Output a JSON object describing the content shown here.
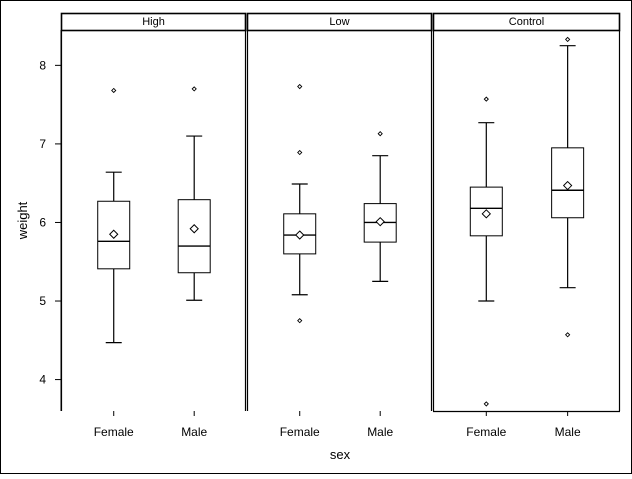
{
  "chart_data": {
    "type": "boxplot",
    "xlabel": "sex",
    "ylabel": "weight",
    "ylim": [
      3.6,
      8.45
    ],
    "yticks": [
      4,
      5,
      6,
      7,
      8
    ],
    "grid": false,
    "categories": [
      "Female",
      "Male"
    ],
    "panels": [
      {
        "name": "High",
        "boxes": [
          {
            "category": "Female",
            "whisker_low": 4.47,
            "q1": 5.41,
            "median": 5.76,
            "q3": 6.27,
            "whisker_high": 6.64,
            "mean": 5.85,
            "outliers": [
              7.68
            ]
          },
          {
            "category": "Male",
            "whisker_low": 5.01,
            "q1": 5.36,
            "median": 5.7,
            "q3": 6.29,
            "whisker_high": 7.1,
            "mean": 5.92,
            "outliers": [
              7.7
            ]
          }
        ]
      },
      {
        "name": "Low",
        "boxes": [
          {
            "category": "Female",
            "whisker_low": 5.08,
            "q1": 5.6,
            "median": 5.84,
            "q3": 6.11,
            "whisker_high": 6.49,
            "mean": 5.84,
            "outliers": [
              6.89,
              7.73,
              4.75
            ]
          },
          {
            "category": "Male",
            "whisker_low": 5.25,
            "q1": 5.75,
            "median": 6.0,
            "q3": 6.24,
            "whisker_high": 6.85,
            "mean": 6.01,
            "outliers": [
              7.13
            ]
          }
        ]
      },
      {
        "name": "Control",
        "boxes": [
          {
            "category": "Female",
            "whisker_low": 5.0,
            "q1": 5.83,
            "median": 6.18,
            "q3": 6.45,
            "whisker_high": 7.27,
            "mean": 6.11,
            "outliers": [
              7.57,
              3.69
            ]
          },
          {
            "category": "Male",
            "whisker_low": 5.17,
            "q1": 6.06,
            "median": 6.41,
            "q3": 6.95,
            "whisker_high": 8.25,
            "mean": 6.47,
            "outliers": [
              8.33,
              4.57
            ]
          }
        ]
      }
    ]
  }
}
